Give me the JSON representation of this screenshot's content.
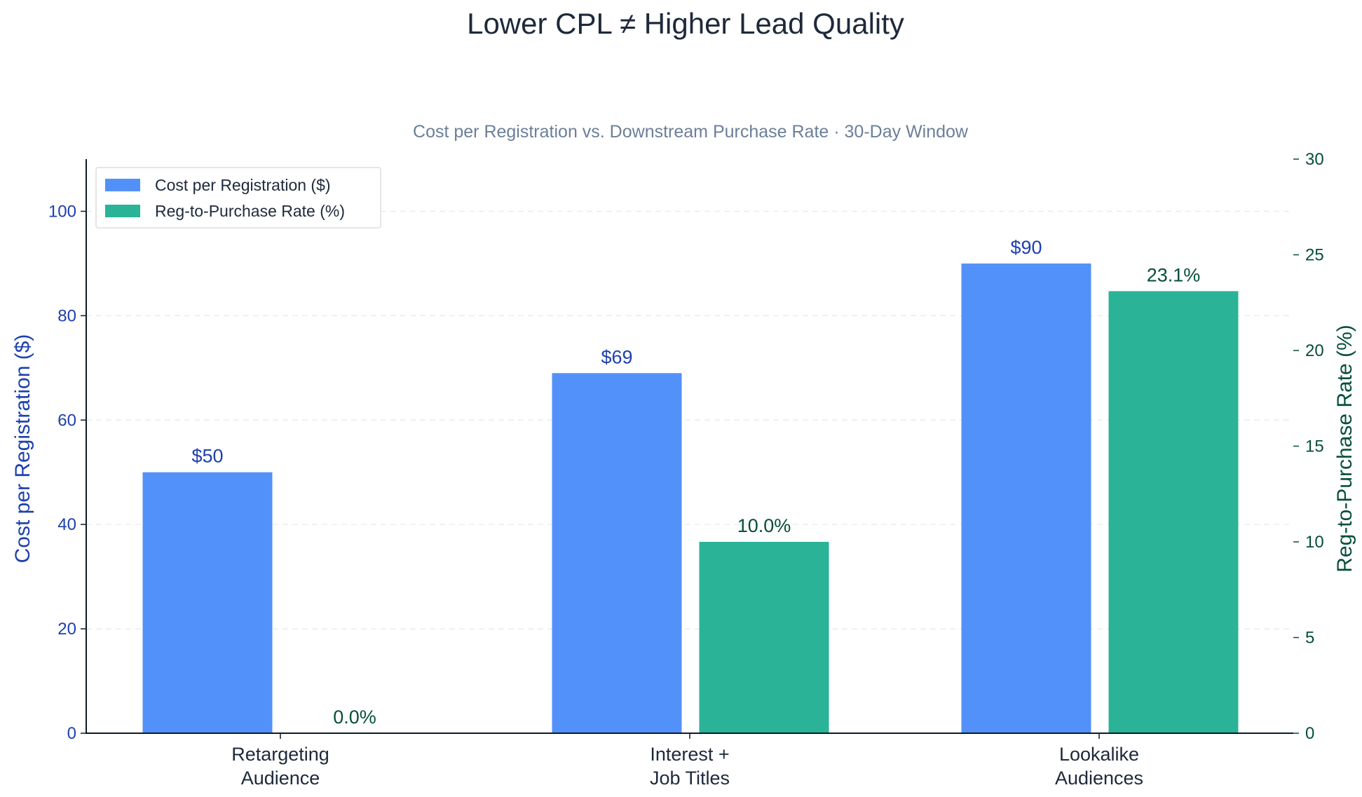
{
  "chart_data": {
    "type": "bar",
    "title": "Lower CPL ≠ Higher Lead Quality",
    "subtitle": "Cost per Registration vs. Downstream Purchase Rate  ·  30-Day Window",
    "categories": [
      [
        "Retargeting",
        "Audience"
      ],
      [
        "Interest +",
        "Job Titles"
      ],
      [
        "Lookalike",
        "Audiences"
      ]
    ],
    "series": [
      {
        "name": "Cost per Registration ($)",
        "axis": "left",
        "values": [
          50,
          69,
          90
        ],
        "value_labels": [
          "$50",
          "$69",
          "$90"
        ],
        "color": "#5291fa"
      },
      {
        "name": "Reg-to-Purchase Rate (%)",
        "axis": "right",
        "values": [
          0.0,
          10.0,
          23.1
        ],
        "value_labels": [
          "0.0%",
          "10.0%",
          "23.1%"
        ],
        "color": "#2ab396"
      }
    ],
    "ylabel_left": "Cost per Registration ($)",
    "ylabel_right": "Reg-to-Purchase Rate (%)",
    "ylim_left": [
      0,
      110
    ],
    "yticks_left": [
      0,
      20,
      40,
      60,
      80,
      100
    ],
    "ylim_right": [
      0,
      30
    ],
    "yticks_right": [
      0,
      5,
      10,
      15,
      20,
      25,
      30
    ],
    "left_axis_color": "#1e40af",
    "right_axis_color": "#064e3b",
    "grid": "horizontal dashed",
    "legend_position": "top-left"
  }
}
